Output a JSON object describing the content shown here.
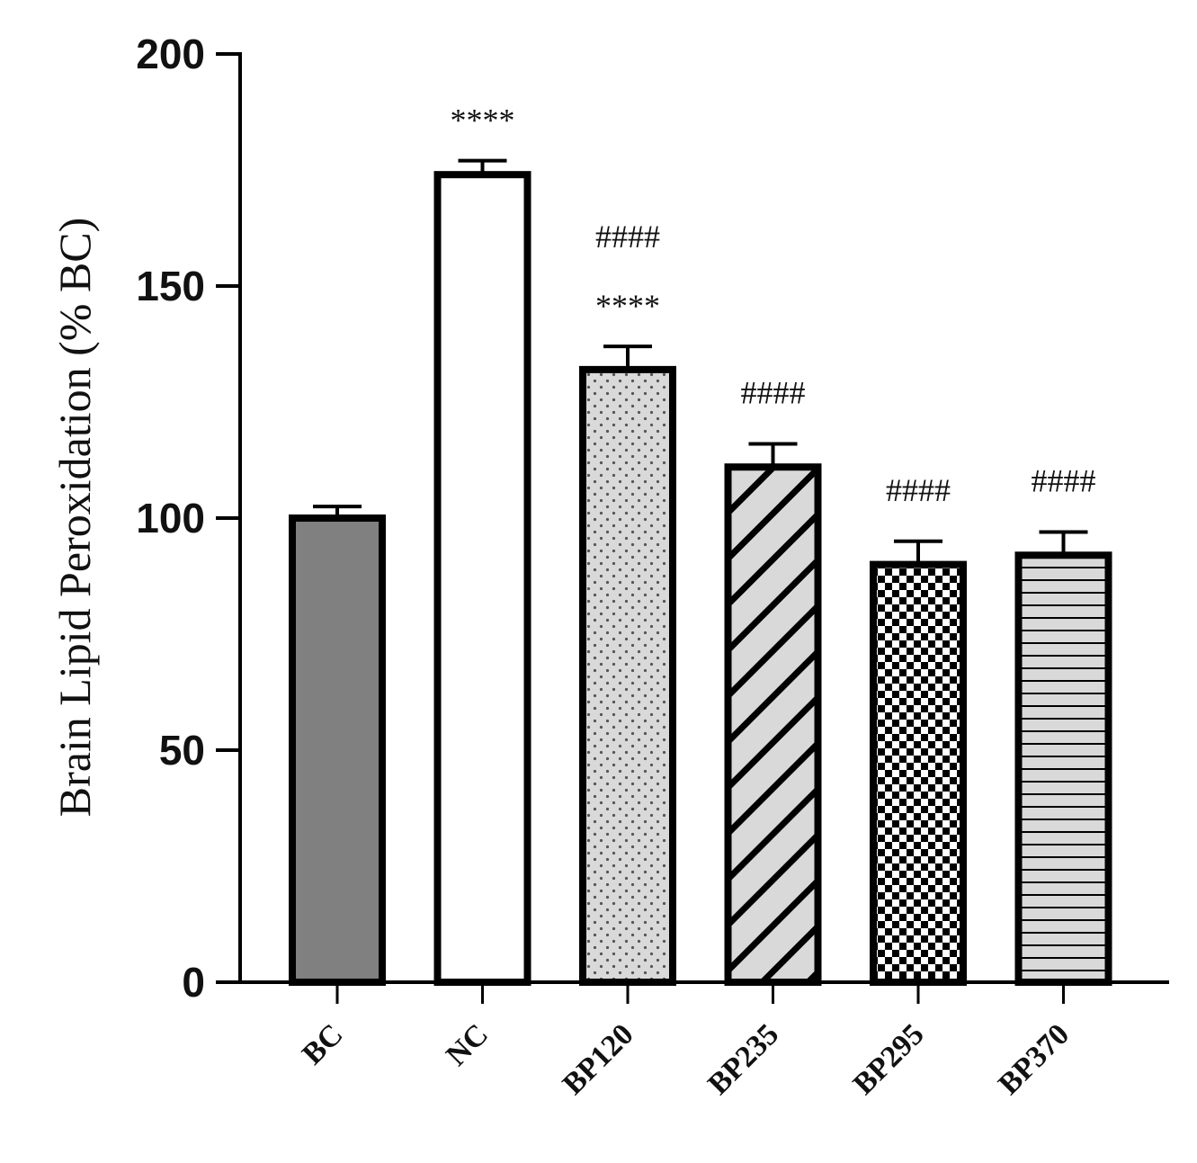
{
  "chart_data": {
    "type": "bar",
    "ylabel": "Brain Lipid Peroxidation (% BC)",
    "xlabel": "",
    "ylim": [
      0,
      200
    ],
    "yticks": [
      0,
      50,
      100,
      150,
      200
    ],
    "grid": false,
    "categories": [
      "BC",
      "NC",
      "BP120",
      "BP235",
      "BP295",
      "BP370"
    ],
    "values": [
      100,
      174,
      132,
      111,
      90,
      92
    ],
    "errors": [
      2.5,
      3,
      5,
      5,
      5,
      5
    ],
    "patterns": [
      "solid-gray",
      "white",
      "dots",
      "diagonal-stripes",
      "checkerboard",
      "horizontal-stripes"
    ],
    "annotations": [
      [],
      [
        "****"
      ],
      [
        "****",
        "####"
      ],
      [
        "####"
      ],
      [
        "####"
      ],
      [
        "####"
      ]
    ],
    "colors": {
      "bar_gray": "#808080",
      "pattern_light": "#d9d9d9",
      "ink": "#000000"
    }
  }
}
